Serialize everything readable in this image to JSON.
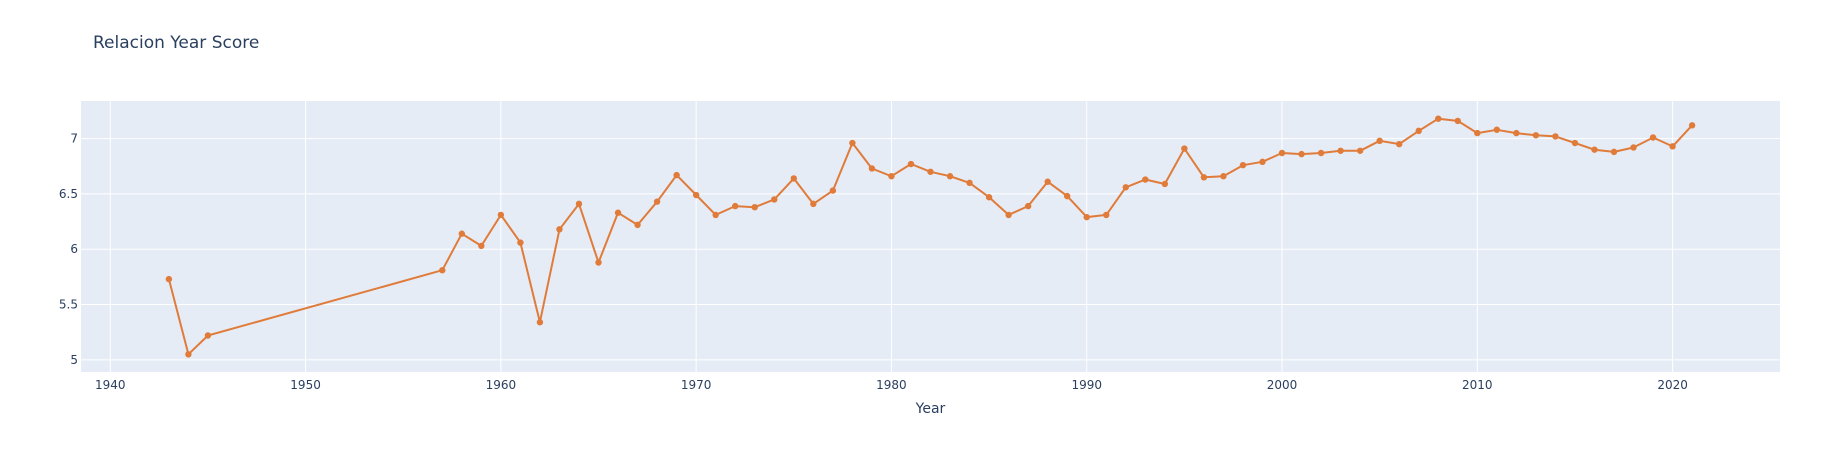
{
  "chart_data": {
    "type": "line",
    "title": "Relacion Year Score",
    "xlabel": "Year",
    "ylabel": "",
    "xlim": [
      1938.5,
      2025.5
    ],
    "ylim": [
      4.89,
      7.34
    ],
    "xticks": [
      1940,
      1950,
      1960,
      1970,
      1980,
      1990,
      2000,
      2010,
      2020
    ],
    "yticks": [
      5,
      5.5,
      6,
      6.5,
      7
    ],
    "yticklabels": [
      "5",
      "5.5",
      "6",
      "6.5",
      "7"
    ],
    "grid": true,
    "colors": {
      "line": "#e07b39",
      "plot_bg": "#e5ecf6",
      "grid": "#ffffff",
      "text": "#2a3f5f"
    },
    "series": [
      {
        "x": [
          1943,
          1944,
          1945,
          1957,
          1958,
          1959,
          1960,
          1961,
          1962,
          1963,
          1964,
          1965,
          1966,
          1967,
          1968,
          1969,
          1970,
          1971,
          1972,
          1973,
          1974,
          1975,
          1976,
          1977,
          1978,
          1979,
          1980,
          1981,
          1982,
          1983,
          1984,
          1985,
          1986,
          1987,
          1988,
          1989,
          1990,
          1991,
          1992,
          1993,
          1994,
          1995,
          1996,
          1997,
          1998,
          1999,
          2000,
          2001,
          2002,
          2003,
          2004,
          2005,
          2006,
          2007,
          2008,
          2009,
          2010,
          2011,
          2012,
          2013,
          2014,
          2015,
          2016,
          2017,
          2018,
          2019,
          2020,
          2021
        ],
        "values": [
          5.73,
          5.05,
          5.22,
          5.81,
          6.14,
          6.03,
          6.31,
          6.06,
          5.34,
          6.18,
          6.41,
          5.88,
          6.33,
          6.22,
          6.43,
          6.67,
          6.49,
          6.31,
          6.39,
          6.38,
          6.45,
          6.64,
          6.41,
          6.53,
          6.96,
          6.73,
          6.66,
          6.77,
          6.7,
          6.66,
          6.6,
          6.47,
          6.31,
          6.39,
          6.61,
          6.48,
          6.29,
          6.31,
          6.56,
          6.63,
          6.59,
          6.91,
          6.65,
          6.66,
          6.76,
          6.79,
          6.87,
          6.86,
          6.87,
          6.89,
          6.89,
          6.98,
          6.95,
          7.07,
          7.18,
          7.16,
          7.05,
          7.08,
          7.05,
          7.03,
          7.02,
          6.96,
          6.9,
          6.88,
          6.92,
          7.01,
          6.93,
          7.12
        ]
      }
    ]
  }
}
